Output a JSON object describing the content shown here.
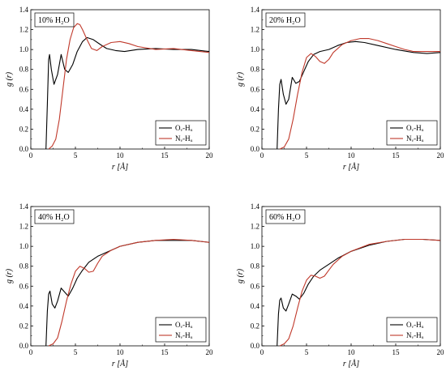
{
  "chart_data": [
    {
      "type": "line",
      "label": "10% H₂O",
      "xlabel": "r [Å]",
      "ylabel": "g (r)",
      "xlim": [
        0,
        20
      ],
      "ylim": [
        0,
        1.4
      ],
      "xticks": [
        "0",
        "5",
        "10",
        "15",
        "20"
      ],
      "yticks": [
        "0.0",
        "0.2",
        "0.4",
        "0.6",
        "0.8",
        "1.0",
        "1.2",
        "1.4"
      ],
      "grid": false,
      "legend": "bottom-right",
      "series": [
        {
          "name": "Oᵥ-Hᵤ",
          "color": "#000000",
          "x": [
            1.7,
            1.85,
            2.0,
            2.1,
            2.3,
            2.6,
            3.0,
            3.4,
            3.8,
            4.2,
            4.7,
            5.2,
            5.8,
            6.3,
            7.0,
            7.8,
            8.5,
            9.5,
            10.5,
            12,
            14,
            16,
            18,
            20
          ],
          "y": [
            0,
            0.45,
            0.9,
            0.95,
            0.8,
            0.65,
            0.75,
            0.95,
            0.8,
            0.77,
            0.85,
            0.98,
            1.08,
            1.12,
            1.1,
            1.05,
            1.01,
            0.99,
            0.98,
            1.0,
            1.01,
            1.0,
            1.0,
            0.98
          ]
        },
        {
          "name": "Nᵥ-Hᵤ",
          "color": "#c0392b",
          "x": [
            2.0,
            2.4,
            2.8,
            3.2,
            3.6,
            4.0,
            4.4,
            4.8,
            5.2,
            5.5,
            5.8,
            6.3,
            6.8,
            7.4,
            8.0,
            9.0,
            10,
            11,
            12,
            14,
            16,
            18,
            20
          ],
          "y": [
            0,
            0.03,
            0.1,
            0.3,
            0.6,
            0.9,
            1.1,
            1.22,
            1.26,
            1.25,
            1.2,
            1.1,
            1.01,
            0.99,
            1.03,
            1.07,
            1.08,
            1.06,
            1.03,
            1.0,
            1.01,
            0.99,
            0.97
          ]
        }
      ]
    },
    {
      "type": "line",
      "label": "20% H₂O",
      "xlabel": "r [Å]",
      "ylabel": "g (r)",
      "xlim": [
        0,
        20
      ],
      "ylim": [
        0,
        1.4
      ],
      "xticks": [
        "0",
        "5",
        "10",
        "15",
        "20"
      ],
      "yticks": [
        "0.0",
        "0.2",
        "0.4",
        "0.6",
        "0.8",
        "1.0",
        "1.2",
        "1.4"
      ],
      "grid": false,
      "legend": "bottom-right",
      "series": [
        {
          "name": "Oᵥ-Hᵤ",
          "color": "#000000",
          "x": [
            1.7,
            1.85,
            2.0,
            2.15,
            2.4,
            2.7,
            3.0,
            3.4,
            3.8,
            4.2,
            4.7,
            5.2,
            5.8,
            6.5,
            7.5,
            8.5,
            9.5,
            10.5,
            11.5,
            13,
            15,
            17,
            18.5,
            20
          ],
          "y": [
            0,
            0.4,
            0.65,
            0.7,
            0.55,
            0.45,
            0.5,
            0.72,
            0.66,
            0.68,
            0.78,
            0.88,
            0.95,
            0.98,
            1.0,
            1.04,
            1.07,
            1.08,
            1.07,
            1.04,
            1.0,
            0.97,
            0.96,
            0.97
          ]
        },
        {
          "name": "Nᵥ-Hᵤ",
          "color": "#c0392b",
          "x": [
            2.0,
            2.5,
            3.0,
            3.5,
            4.0,
            4.5,
            5.0,
            5.5,
            6.0,
            6.5,
            7.0,
            7.5,
            8.0,
            9.0,
            10,
            11,
            12,
            13,
            14,
            15,
            16,
            17,
            18,
            19,
            20
          ],
          "y": [
            0,
            0.02,
            0.1,
            0.3,
            0.55,
            0.77,
            0.92,
            0.96,
            0.93,
            0.88,
            0.86,
            0.9,
            0.97,
            1.05,
            1.09,
            1.11,
            1.11,
            1.09,
            1.06,
            1.03,
            1.0,
            0.98,
            0.98,
            0.98,
            0.98
          ]
        }
      ]
    },
    {
      "type": "line",
      "label": "40% H₂O",
      "xlabel": "r [Å]",
      "ylabel": "g (r)",
      "xlim": [
        0,
        20
      ],
      "ylim": [
        0,
        1.4
      ],
      "xticks": [
        "0",
        "5",
        "10",
        "15",
        "20"
      ],
      "yticks": [
        "0.0",
        "0.2",
        "0.4",
        "0.6",
        "0.8",
        "1.0",
        "1.2",
        "1.4"
      ],
      "grid": false,
      "legend": "bottom-right",
      "series": [
        {
          "name": "Oᵥ-Hᵤ",
          "color": "#000000",
          "x": [
            1.7,
            1.85,
            2.0,
            2.15,
            2.4,
            2.7,
            3.0,
            3.4,
            3.8,
            4.2,
            4.7,
            5.2,
            5.8,
            6.5,
            7.5,
            8.5,
            10,
            12,
            14,
            16,
            18,
            20
          ],
          "y": [
            0,
            0.35,
            0.52,
            0.55,
            0.42,
            0.38,
            0.45,
            0.58,
            0.54,
            0.5,
            0.58,
            0.68,
            0.76,
            0.84,
            0.9,
            0.94,
            1.0,
            1.04,
            1.06,
            1.06,
            1.06,
            1.04
          ]
        },
        {
          "name": "Nᵥ-Hᵤ",
          "color": "#c0392b",
          "x": [
            2.0,
            2.5,
            3.0,
            3.5,
            4.0,
            4.5,
            5.0,
            5.5,
            6.0,
            6.5,
            7.0,
            7.5,
            8.0,
            9.0,
            10,
            12,
            14,
            16,
            18,
            20
          ],
          "y": [
            0,
            0.02,
            0.08,
            0.25,
            0.45,
            0.62,
            0.75,
            0.8,
            0.78,
            0.74,
            0.75,
            0.83,
            0.9,
            0.96,
            1.0,
            1.04,
            1.06,
            1.07,
            1.06,
            1.04
          ]
        }
      ]
    },
    {
      "type": "line",
      "label": "60% H₂O",
      "xlabel": "r [Å]",
      "ylabel": "g (r)",
      "xlim": [
        0,
        20
      ],
      "ylim": [
        0,
        1.4
      ],
      "xticks": [
        "0",
        "5",
        "10",
        "15",
        "20"
      ],
      "yticks": [
        "0.0",
        "0.2",
        "0.4",
        "0.6",
        "0.8",
        "1.0",
        "1.2",
        "1.4"
      ],
      "grid": false,
      "legend": "bottom-right",
      "series": [
        {
          "name": "Oᵥ-Hᵤ",
          "color": "#000000",
          "x": [
            1.7,
            1.85,
            2.0,
            2.15,
            2.4,
            2.7,
            3.0,
            3.4,
            3.8,
            4.2,
            4.7,
            5.2,
            5.8,
            6.5,
            7.5,
            8.5,
            10,
            12,
            14,
            16,
            18,
            20
          ],
          "y": [
            0,
            0.32,
            0.46,
            0.48,
            0.38,
            0.35,
            0.42,
            0.52,
            0.5,
            0.47,
            0.53,
            0.62,
            0.7,
            0.76,
            0.82,
            0.88,
            0.95,
            1.01,
            1.05,
            1.07,
            1.07,
            1.06
          ]
        },
        {
          "name": "Nᵥ-Hᵤ",
          "color": "#c0392b",
          "x": [
            2.0,
            2.5,
            3.0,
            3.5,
            4.0,
            4.5,
            5.0,
            5.5,
            6.0,
            6.5,
            7.0,
            7.5,
            8.0,
            9.0,
            10,
            12,
            14,
            16,
            18,
            20
          ],
          "y": [
            0,
            0.02,
            0.07,
            0.2,
            0.38,
            0.55,
            0.66,
            0.71,
            0.7,
            0.68,
            0.7,
            0.76,
            0.82,
            0.9,
            0.95,
            1.02,
            1.05,
            1.07,
            1.07,
            1.06
          ]
        }
      ]
    }
  ]
}
